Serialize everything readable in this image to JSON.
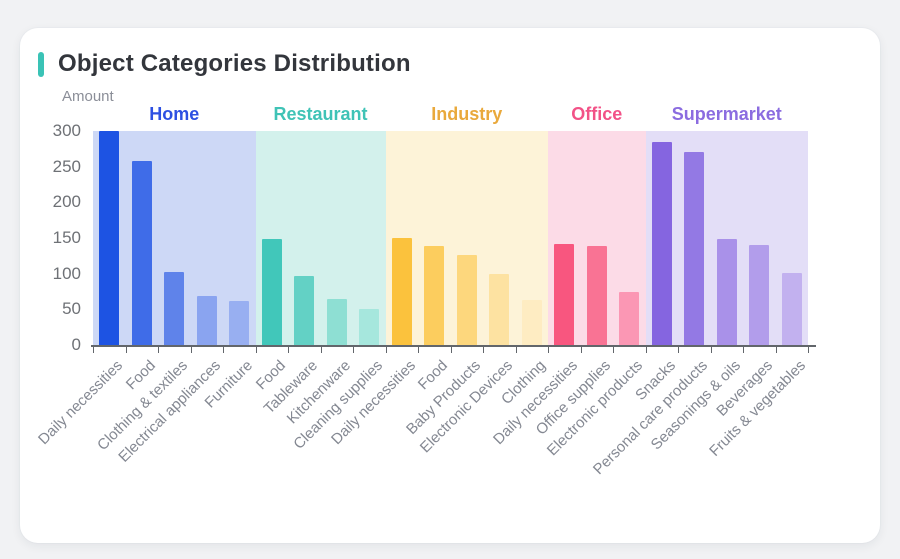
{
  "card": {
    "title": "Object Categories Distribution",
    "accent_color": "#3ac3b6"
  },
  "chart_data": {
    "type": "bar",
    "title": "Object Categories Distribution",
    "xlabel": "",
    "ylabel": "Amount",
    "ylim": [
      0,
      300
    ],
    "y_ticks": [
      0,
      50,
      100,
      150,
      200,
      250,
      300
    ],
    "grid": false,
    "legend_position": "group headers above colored bands",
    "groups": [
      {
        "name": "Home",
        "label_color": "#2d50e2",
        "band_color": "#cdd8f6",
        "categories": [
          "Daily necessities",
          "Food",
          "Clothing & textiles",
          "Electrical appliances",
          "Furniture"
        ],
        "values": [
          300,
          258,
          103,
          68,
          62
        ],
        "bar_colors": [
          "#1d53e3",
          "#3f6ce8",
          "#5f83ea",
          "#8aa4f0",
          "#98aff1"
        ]
      },
      {
        "name": "Restaurant",
        "label_color": "#3fc3b6",
        "band_color": "#d3f1ec",
        "categories": [
          "Food",
          "Tableware",
          "Kitchenware",
          "Cleaning supplies"
        ],
        "values": [
          148,
          97,
          65,
          50
        ],
        "bar_colors": [
          "#41c7ba",
          "#63d1c5",
          "#8edfd3",
          "#a6e7dd"
        ]
      },
      {
        "name": "Industry",
        "label_color": "#e9a93c",
        "band_color": "#fdf3d8",
        "categories": [
          "Daily necessities",
          "Food",
          "Baby Products",
          "Electronic Devices",
          "Clothing"
        ],
        "values": [
          150,
          139,
          126,
          100,
          63
        ],
        "bar_colors": [
          "#fbc23d",
          "#fccd5e",
          "#fdd77d",
          "#fde2a1",
          "#feecc2"
        ]
      },
      {
        "name": "Office",
        "label_color": "#f25287",
        "band_color": "#fcdbe7",
        "categories": [
          "Daily necessities",
          "Office supplies",
          "Electronic products"
        ],
        "values": [
          142,
          139,
          75
        ],
        "bar_colors": [
          "#f8567f",
          "#f97394",
          "#fb97b4"
        ]
      },
      {
        "name": "Supermarket",
        "label_color": "#8b6ce0",
        "band_color": "#e3def7",
        "categories": [
          "Snacks",
          "Personal care products",
          "Seasonings & oils",
          "Beverages",
          "Fruits & vegetables"
        ],
        "values": [
          285,
          271,
          148,
          140,
          101
        ],
        "bar_colors": [
          "#8565e0",
          "#9379e4",
          "#a991e9",
          "#b29deb",
          "#c2b1ef"
        ]
      }
    ]
  }
}
